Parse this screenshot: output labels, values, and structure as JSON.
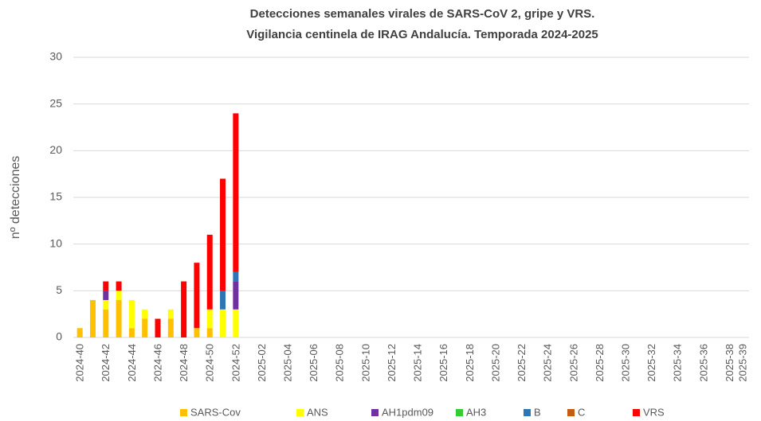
{
  "chart_data": {
    "type": "stacked_bar",
    "title": "Detecciones semanales virales de SARS-CoV 2, gripe y VRS.",
    "subtitle": "Vigilancia centinela de IRAG Andalucía. Temporada 2024-2025",
    "y_label": "nº detecciones",
    "categories": [
      "2024-40",
      null,
      "2024-42",
      null,
      "2024-44",
      null,
      "2024-46",
      null,
      "2024-48",
      null,
      "2024-50",
      null,
      "2024-52",
      null,
      "2025-02",
      null,
      "2025-04",
      null,
      "2025-06",
      null,
      "2025-08",
      null,
      "2025-10",
      null,
      "2025-12",
      null,
      "2025-14",
      null,
      "2025-16",
      null,
      "2025-18",
      null,
      "2025-20",
      null,
      "2025-22",
      null,
      "2025-24",
      null,
      "2025-26",
      null,
      "2025-28",
      null,
      "2025-30",
      null,
      "2025-32",
      null,
      "2025-34",
      null,
      "2025-36",
      null,
      "2025-38",
      "2025-39"
    ],
    "series": [
      {
        "name": "SARS-Cov",
        "color": "#ffc000",
        "values": [
          1,
          4,
          3,
          4,
          1,
          2,
          0,
          2,
          0,
          1,
          1,
          0,
          0,
          null,
          null,
          null,
          null,
          null,
          null,
          null,
          null,
          null,
          null,
          null,
          null,
          null,
          null,
          null,
          null,
          null,
          null,
          null,
          null,
          null,
          null,
          null,
          null,
          null,
          null,
          null,
          null,
          null,
          null,
          null,
          null,
          null,
          null,
          null,
          null,
          null,
          null,
          null
        ]
      },
      {
        "name": "ANS",
        "color": "#ffff00",
        "values": [
          0,
          0,
          1,
          1,
          3,
          1,
          0,
          1,
          0,
          0,
          2,
          3,
          3,
          null,
          null,
          null,
          null,
          null,
          null,
          null,
          null,
          null,
          null,
          null,
          null,
          null,
          null,
          null,
          null,
          null,
          null,
          null,
          null,
          null,
          null,
          null,
          null,
          null,
          null,
          null,
          null,
          null,
          null,
          null,
          null,
          null,
          null,
          null,
          null,
          null,
          null,
          null
        ]
      },
      {
        "name": "AH1pdm09",
        "color": "#7030a0",
        "values": [
          0,
          0,
          1,
          0,
          0,
          0,
          0,
          0,
          0,
          0,
          0,
          0,
          3,
          null,
          null,
          null,
          null,
          null,
          null,
          null,
          null,
          null,
          null,
          null,
          null,
          null,
          null,
          null,
          null,
          null,
          null,
          null,
          null,
          null,
          null,
          null,
          null,
          null,
          null,
          null,
          null,
          null,
          null,
          null,
          null,
          null,
          null,
          null,
          null,
          null,
          null,
          null
        ]
      },
      {
        "name": "AH3",
        "color": "#33cc33",
        "values": [
          0,
          0,
          0,
          0,
          0,
          0,
          0,
          0,
          0,
          0,
          0,
          0,
          0,
          null,
          null,
          null,
          null,
          null,
          null,
          null,
          null,
          null,
          null,
          null,
          null,
          null,
          null,
          null,
          null,
          null,
          null,
          null,
          null,
          null,
          null,
          null,
          null,
          null,
          null,
          null,
          null,
          null,
          null,
          null,
          null,
          null,
          null,
          null,
          null,
          null,
          null,
          null
        ]
      },
      {
        "name": "B",
        "color": "#2e75b6",
        "values": [
          0,
          0,
          0,
          0,
          0,
          0,
          0,
          0,
          0,
          0,
          0,
          2,
          1,
          null,
          null,
          null,
          null,
          null,
          null,
          null,
          null,
          null,
          null,
          null,
          null,
          null,
          null,
          null,
          null,
          null,
          null,
          null,
          null,
          null,
          null,
          null,
          null,
          null,
          null,
          null,
          null,
          null,
          null,
          null,
          null,
          null,
          null,
          null,
          null,
          null,
          null,
          null
        ]
      },
      {
        "name": "C",
        "color": "#c55a11",
        "values": [
          0,
          0,
          0,
          0,
          0,
          0,
          0,
          0,
          0,
          0,
          0,
          0,
          0,
          null,
          null,
          null,
          null,
          null,
          null,
          null,
          null,
          null,
          null,
          null,
          null,
          null,
          null,
          null,
          null,
          null,
          null,
          null,
          null,
          null,
          null,
          null,
          null,
          null,
          null,
          null,
          null,
          null,
          null,
          null,
          null,
          null,
          null,
          null,
          null,
          null,
          null,
          null
        ]
      },
      {
        "name": "VRS",
        "color": "#ff0000",
        "values": [
          0,
          0,
          1,
          1,
          0,
          0,
          2,
          0,
          6,
          7,
          8,
          12,
          17,
          null,
          null,
          null,
          null,
          null,
          null,
          null,
          null,
          null,
          null,
          null,
          null,
          null,
          null,
          null,
          null,
          null,
          null,
          null,
          null,
          null,
          null,
          null,
          null,
          null,
          null,
          null,
          null,
          null,
          null,
          null,
          null,
          null,
          null,
          null,
          null,
          null,
          null,
          null
        ]
      }
    ],
    "ylim": [
      0,
      30
    ],
    "yticks": [
      0,
      5,
      10,
      15,
      20,
      25,
      30
    ],
    "grid": true,
    "legend": "bottom"
  }
}
